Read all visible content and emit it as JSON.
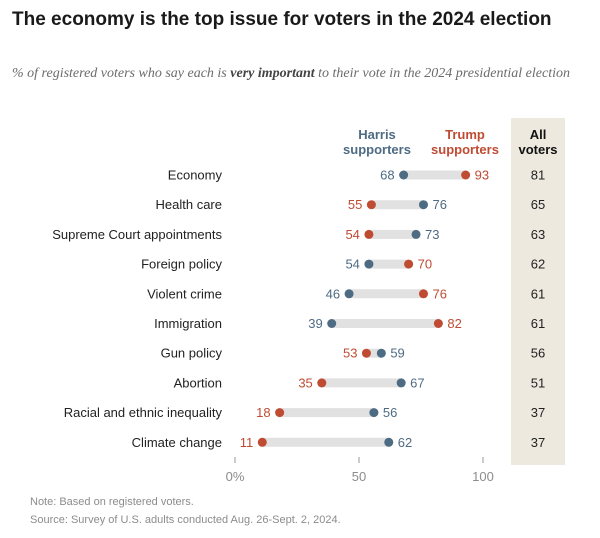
{
  "title": "The economy is the top issue for voters in the 2024 election",
  "subtitle": {
    "before": "% of registered voters who say each is ",
    "emphasis": "very important",
    "after": " to their vote in the 2024 presidential election"
  },
  "chart_data": {
    "type": "dot",
    "categories": [
      "Economy",
      "Health care",
      "Supreme Court appointments",
      "Foreign policy",
      "Violent crime",
      "Immigration",
      "Gun policy",
      "Abortion",
      "Racial and ethnic inequality",
      "Climate change"
    ],
    "series": [
      {
        "name": "Harris supporters",
        "label_lines": [
          "Harris",
          "supporters"
        ],
        "color": "#4e6b84",
        "values": [
          68,
          76,
          73,
          54,
          46,
          39,
          59,
          67,
          56,
          62
        ]
      },
      {
        "name": "Trump supporters",
        "label_lines": [
          "Trump",
          "supporters"
        ],
        "color": "#bf4b33",
        "values": [
          93,
          55,
          54,
          70,
          76,
          82,
          53,
          35,
          18,
          11
        ]
      }
    ],
    "all_voters": {
      "header_lines": [
        "All",
        "voters"
      ],
      "values": [
        81,
        65,
        63,
        62,
        61,
        61,
        56,
        51,
        37,
        37
      ]
    },
    "x_ticks": [
      "0%",
      "50",
      "100"
    ],
    "xlim": [
      0,
      100
    ]
  },
  "note": "Note: Based on registered voters.",
  "source": "Source: Survey of U.S. adults conducted Aug. 26-Sept. 2, 2024."
}
